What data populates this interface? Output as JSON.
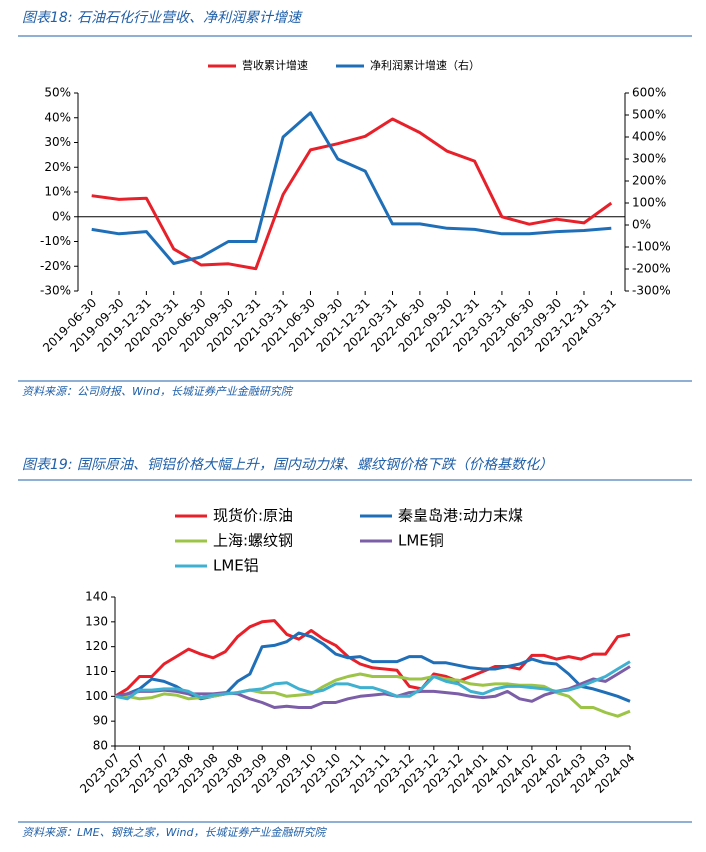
{
  "chart_data": [
    {
      "type": "line",
      "title": "图表18: 石油石化行业营收、净利润累计增速",
      "source": "资料来源：公司财报、Wind，长城证券产业金融研究院",
      "categories": [
        "2019-06-30",
        "2019-09-30",
        "2019-12-31",
        "2020-03-31",
        "2020-06-30",
        "2020-09-30",
        "2020-12-31",
        "2021-03-31",
        "2021-06-30",
        "2021-09-30",
        "2021-12-31",
        "2022-03-31",
        "2022-06-30",
        "2022-09-30",
        "2022-12-31",
        "2023-03-31",
        "2023-06-30",
        "2023-09-30",
        "2023-12-31",
        "2024-03-31"
      ],
      "series": [
        {
          "name": "营收累计增速",
          "color": "#e8202a",
          "values": [
            8.5,
            7,
            7.5,
            -13,
            -19.5,
            -19,
            -21,
            9,
            27,
            29.5,
            32.5,
            39.5,
            34,
            26.5,
            22.5,
            0,
            -3,
            -1,
            -2.5,
            5.5
          ]
        },
        {
          "name": "净利润累计增速（右）",
          "color": "#1f6fb8",
          "axis": "y2",
          "values": [
            -20,
            -40,
            -30,
            -175,
            -145,
            -75,
            -75,
            400,
            510,
            300,
            245,
            5,
            5,
            -15,
            -20,
            -40,
            -40,
            -30,
            -25,
            -15
          ]
        }
      ],
      "ylim": [
        -30,
        50
      ],
      "yticks": [
        {
          "value": -30,
          "label": "-30%"
        },
        {
          "value": -20,
          "label": "-20%"
        },
        {
          "value": -10,
          "label": "-10%"
        },
        {
          "value": 0,
          "label": "0%"
        },
        {
          "value": 10,
          "label": "10%"
        },
        {
          "value": 20,
          "label": "20%"
        },
        {
          "value": 30,
          "label": "30%"
        },
        {
          "value": 40,
          "label": "40%"
        },
        {
          "value": 50,
          "label": "50%"
        }
      ],
      "y2lim": [
        -300,
        600
      ],
      "y2ticks": [
        {
          "value": -300,
          "label": "-300%"
        },
        {
          "value": -200,
          "label": "-200%"
        },
        {
          "value": -100,
          "label": "-100%"
        },
        {
          "value": 0,
          "label": "0%"
        },
        {
          "value": 100,
          "label": "100%"
        },
        {
          "value": 200,
          "label": "200%"
        },
        {
          "value": 300,
          "label": "300%"
        },
        {
          "value": 400,
          "label": "400%"
        },
        {
          "value": 500,
          "label": "500%"
        },
        {
          "value": 600,
          "label": "600%"
        }
      ],
      "legend": "top"
    },
    {
      "type": "line",
      "title": "图表19: 国际原油、铜铝价格大幅上升，国内动力煤、螺纹钢价格下跌（价格基数化）",
      "source": "资料来源：LME、钢铁之家，Wind，长城证券产业金融研究院",
      "categories": [
        "2023-07",
        null,
        "2023-07",
        null,
        "2023-07",
        null,
        "2023-08",
        null,
        "2023-08",
        null,
        "2023-08",
        null,
        "2023-09",
        null,
        "2023-09",
        null,
        "2023-10",
        null,
        "2023-10",
        null,
        "2023-11",
        null,
        "2023-11",
        null,
        "2023-12",
        null,
        "2023-12",
        null,
        "2023-12",
        null,
        "2024-01",
        null,
        "2024-01",
        null,
        "2024-02",
        null,
        "2024-02",
        null,
        "2024-03",
        null,
        "2024-03",
        null,
        "2024-04"
      ],
      "series": [
        {
          "name": "现货价:原油",
          "color": "#e8202a",
          "values": [
            100,
            103,
            108,
            108,
            113,
            116,
            119,
            117,
            115.5,
            118,
            124,
            128,
            130,
            130.5,
            125,
            123,
            126.5,
            123,
            120.5,
            116,
            113,
            111.5,
            111,
            110.5,
            104,
            103,
            109,
            108,
            106,
            108,
            110,
            112,
            112,
            111,
            116.5,
            116.5,
            115,
            116,
            115,
            117,
            117,
            124,
            125
          ]
        },
        {
          "name": "秦皇岛港:动力末煤",
          "color": "#1f6fb8",
          "values": [
            100,
            101,
            103,
            107,
            106,
            104,
            101,
            99,
            100,
            101,
            106,
            109,
            120,
            120.5,
            122,
            125.5,
            124,
            121,
            117,
            115.5,
            116,
            114,
            114,
            114,
            116,
            116,
            113.5,
            113.5,
            112.5,
            111.5,
            111,
            111,
            112,
            113,
            115,
            113.5,
            113,
            109,
            104,
            103,
            101.5,
            100,
            98
          ]
        },
        {
          "name": "上海:螺纹钢",
          "color": "#9cc447",
          "values": [
            100,
            100,
            99,
            99.5,
            101,
            100.5,
            99,
            99.5,
            100,
            101,
            101.5,
            102.5,
            101.5,
            101.5,
            100,
            100.5,
            101,
            104,
            106.5,
            108,
            109,
            108,
            108,
            108,
            107,
            107,
            108,
            107,
            106.5,
            105,
            104.5,
            105,
            105,
            104.5,
            104.5,
            104,
            101.5,
            100,
            95.5,
            95.5,
            93.5,
            92,
            94
          ]
        },
        {
          "name": "LME铜",
          "color": "#7b5ea7",
          "values": [
            100,
            101,
            102,
            102,
            102.5,
            102,
            101,
            101,
            101,
            101.5,
            101,
            99,
            97.5,
            95.5,
            96,
            95.5,
            95.5,
            97.5,
            97.5,
            99,
            100,
            100.5,
            101,
            100,
            101.5,
            102,
            102,
            101.5,
            101,
            100,
            99.5,
            100,
            102,
            99,
            98,
            100.5,
            102,
            103,
            105,
            107,
            106,
            109,
            112
          ]
        },
        {
          "name": "LME铝",
          "color": "#3fb0d0",
          "values": [
            100,
            99,
            102.5,
            102.5,
            103,
            103,
            102,
            99.5,
            100.5,
            101,
            101.5,
            102.5,
            103,
            105,
            105.5,
            103,
            101.5,
            102.5,
            105,
            105,
            103.5,
            103.5,
            102,
            100,
            100,
            103,
            108,
            106,
            105,
            102,
            101,
            103,
            104,
            104,
            103.5,
            103,
            102,
            102.5,
            104,
            106,
            108,
            111,
            114
          ]
        }
      ],
      "ylim": [
        80,
        140
      ],
      "yticks": [
        80,
        90,
        100,
        110,
        120,
        130,
        140
      ],
      "legend": "top"
    }
  ]
}
